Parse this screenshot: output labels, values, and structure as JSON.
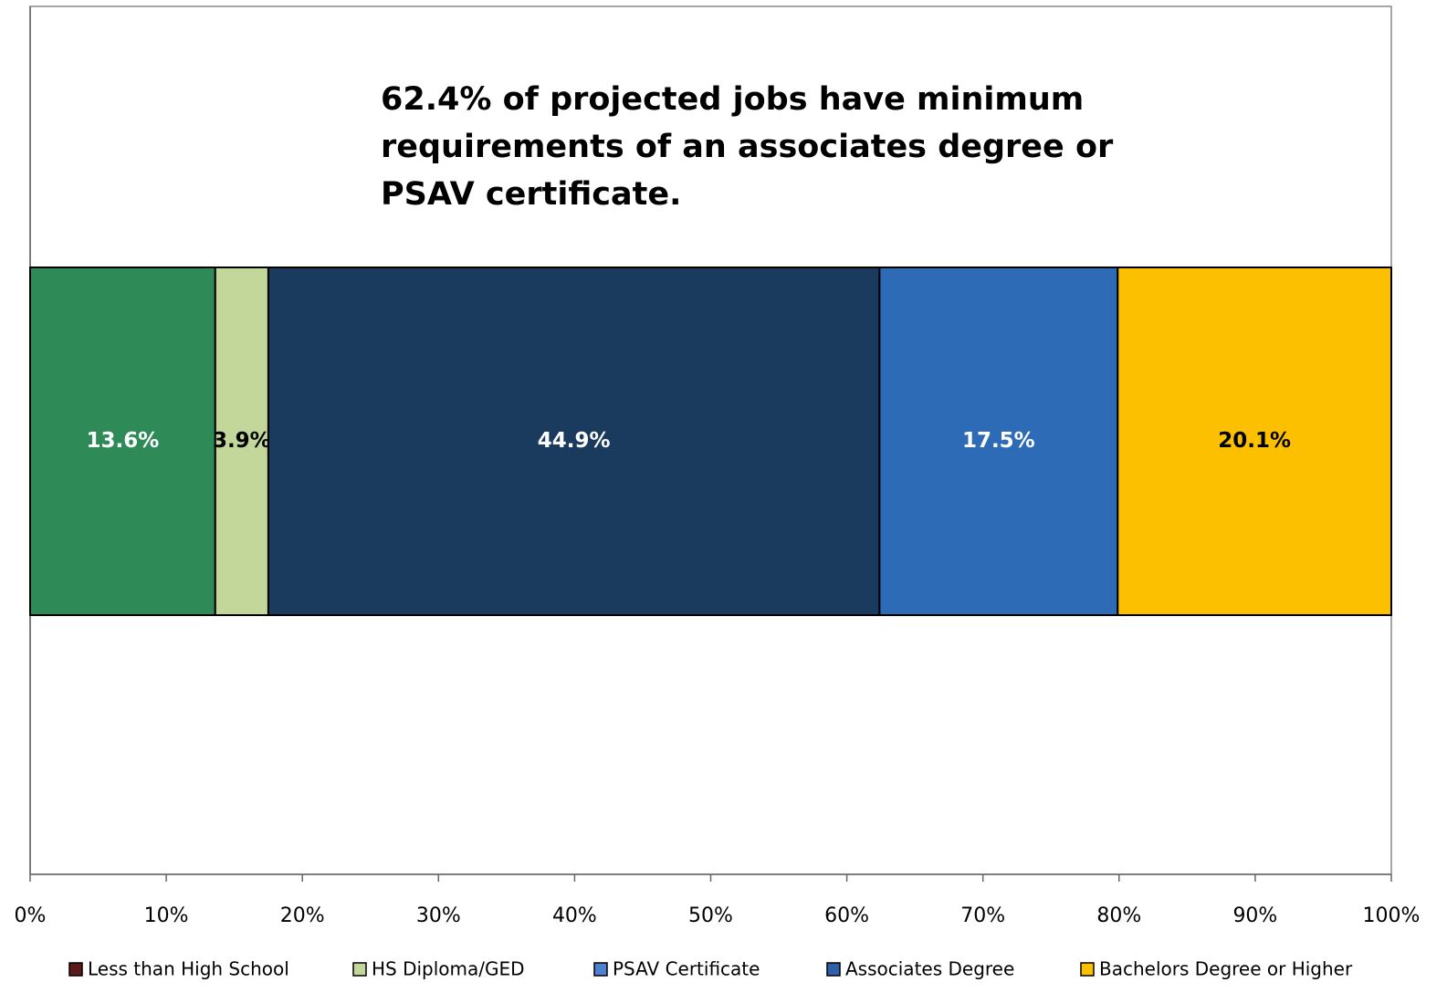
{
  "chart_data": {
    "type": "stacked_barh",
    "annotation": [
      "62.4% of projected jobs have minimum",
      "requirements of an associates degree or",
      "PSAV certificate."
    ],
    "series": [
      {
        "name": "Less than High School",
        "color": "#2e8b57",
        "legend_color": "#5c1a1a",
        "values": [
          13.6
        ],
        "value_labels": [
          "13.6%"
        ],
        "label_color": "#ffffff"
      },
      {
        "name": "HS Diploma/GED",
        "color": "#c4d79b",
        "legend_color": "#c4d79b",
        "values": [
          3.9
        ],
        "value_labels": [
          "3.9%"
        ],
        "label_color": "#000000"
      },
      {
        "name": "PSAV Certificate",
        "color": "#1a3a5e",
        "legend_color": "#4f81d0",
        "values": [
          44.9
        ],
        "value_labels": [
          "44.9%"
        ],
        "label_color": "#ffffff"
      },
      {
        "name": "Associates Degree",
        "color": "#2e6bb6",
        "legend_color": "#2e5fa8",
        "values": [
          17.5
        ],
        "value_labels": [
          "17.5%"
        ],
        "label_color": "#ffffff"
      },
      {
        "name": "Bachelors Degree or Higher",
        "color": "#fdc000",
        "legend_color": "#fdc000",
        "values": [
          20.1
        ],
        "value_labels": [
          "20.1%"
        ],
        "label_color": "#000000"
      }
    ],
    "xlim": [
      0,
      100
    ],
    "xticks": [
      {
        "value": 0,
        "label": "0%"
      },
      {
        "value": 10,
        "label": "10%"
      },
      {
        "value": 20,
        "label": "20%"
      },
      {
        "value": 30,
        "label": "30%"
      },
      {
        "value": 40,
        "label": "40%"
      },
      {
        "value": 50,
        "label": "50%"
      },
      {
        "value": 60,
        "label": "60%"
      },
      {
        "value": 70,
        "label": "70%"
      },
      {
        "value": 80,
        "label": "80%"
      },
      {
        "value": 90,
        "label": "90%"
      },
      {
        "value": 100,
        "label": "100%"
      }
    ],
    "legend": "bottom"
  }
}
